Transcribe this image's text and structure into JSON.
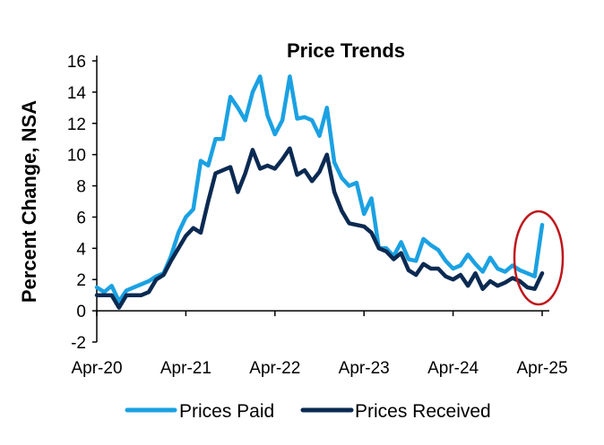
{
  "chart_data": {
    "type": "line",
    "title": "Price Trends",
    "ylabel": "Percent Change, NSA",
    "xlabel": "",
    "ylim": [
      -2,
      16
    ],
    "yticks": [
      "-2",
      "0",
      "2",
      "4",
      "6",
      "8",
      "10",
      "12",
      "14",
      "16"
    ],
    "xticks": [
      "Apr-20",
      "Apr-21",
      "Apr-22",
      "Apr-23",
      "Apr-24",
      "Apr-25"
    ],
    "x_start": "Apr-20",
    "x_end": "Apr-25",
    "frequency": "monthly",
    "grid": false,
    "legend_placement": "bottom",
    "annotation": "red ellipse highlighting latest readings (early 2025)",
    "colors": {
      "prices_paid": "#1ba1e2",
      "prices_received": "#0b2a52",
      "annotation": "#c0161b"
    },
    "series": [
      {
        "name": "Prices Paid",
        "values": [
          1.5,
          1.2,
          1.6,
          0.6,
          1.3,
          1.5,
          1.7,
          1.9,
          2.2,
          2.4,
          3.5,
          5.0,
          6.0,
          6.5,
          9.6,
          9.3,
          11.0,
          11.0,
          13.7,
          13.0,
          12.2,
          14.0,
          15.0,
          12.5,
          11.3,
          12.2,
          15.0,
          12.3,
          12.4,
          12.2,
          11.2,
          13.0,
          9.5,
          8.5,
          8.0,
          8.2,
          6.2,
          7.2,
          4.0,
          4.0,
          3.5,
          4.4,
          3.3,
          3.2,
          4.6,
          4.2,
          3.9,
          3.2,
          2.7,
          2.9,
          3.6,
          3.0,
          2.5,
          3.4,
          2.7,
          2.5,
          2.9,
          2.6,
          2.4,
          2.2,
          5.5
        ]
      },
      {
        "name": "Prices Received",
        "values": [
          1.0,
          1.0,
          1.0,
          0.2,
          1.0,
          1.0,
          1.0,
          1.2,
          2.0,
          2.3,
          3.2,
          4.0,
          4.8,
          5.3,
          5.0,
          7.0,
          8.8,
          9.0,
          9.2,
          7.6,
          8.8,
          10.3,
          9.1,
          9.3,
          9.1,
          9.7,
          10.4,
          8.7,
          9.0,
          8.3,
          8.9,
          10.0,
          7.6,
          6.4,
          5.6,
          5.5,
          5.4,
          5.0,
          4.0,
          3.8,
          3.3,
          3.7,
          2.6,
          2.3,
          3.0,
          2.7,
          2.7,
          2.2,
          2.0,
          2.3,
          1.6,
          2.4,
          1.4,
          1.9,
          1.6,
          1.8,
          2.1,
          1.9,
          1.5,
          1.4,
          2.4
        ]
      }
    ]
  }
}
